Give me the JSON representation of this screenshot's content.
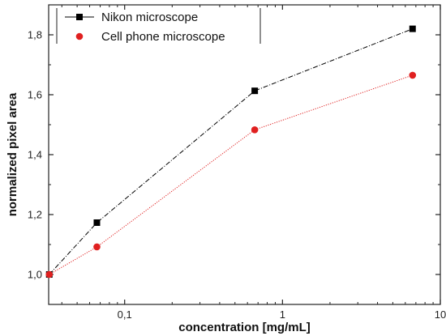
{
  "chart_data": {
    "type": "line",
    "xlabel": "concentration [mg/mL]",
    "ylabel": "normalized pixel area",
    "xscale": "log",
    "xlim": [
      0.033,
      10
    ],
    "ylim": [
      0.9,
      1.9
    ],
    "xticks": [
      {
        "value": 0.1,
        "label": "0,1"
      },
      {
        "value": 1,
        "label": "1"
      },
      {
        "value": 10,
        "label": "10"
      }
    ],
    "yticks": [
      {
        "value": 1.0,
        "label": "1,0"
      },
      {
        "value": 1.2,
        "label": "1,2"
      },
      {
        "value": 1.4,
        "label": "1,4"
      },
      {
        "value": 1.6,
        "label": "1,6"
      },
      {
        "value": 1.8,
        "label": "1,8"
      }
    ],
    "grid": false,
    "legend_position": "top-left",
    "series": [
      {
        "name": "Nikon microscope",
        "marker": "square",
        "color": "#000000",
        "line_style": "dash-dot",
        "x": [
          0.0333,
          0.0667,
          0.667,
          6.67
        ],
        "y": [
          1.0,
          1.173,
          1.613,
          1.82
        ]
      },
      {
        "name": "Cell phone microscope",
        "marker": "circle",
        "color": "#e02020",
        "line_style": "dotted",
        "x": [
          0.0333,
          0.0667,
          0.667,
          6.67
        ],
        "y": [
          1.0,
          1.092,
          1.483,
          1.665
        ]
      }
    ]
  }
}
